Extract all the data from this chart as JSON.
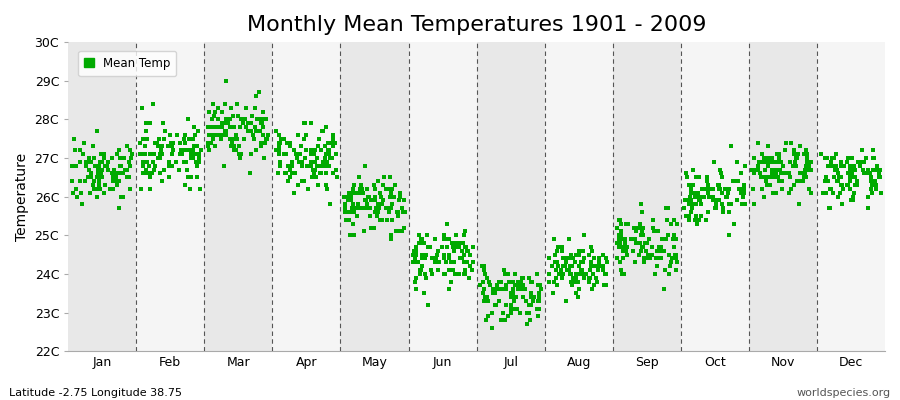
{
  "title": "Monthly Mean Temperatures 1901 - 2009",
  "ylabel": "Temperature",
  "subtitle_left": "Latitude -2.75 Longitude 38.75",
  "subtitle_right": "worldspecies.org",
  "legend_label": "Mean Temp",
  "background_color": "#ffffff",
  "band_color_odd": "#e8e8e8",
  "band_color_even": "#f5f5f5",
  "dot_color": "#00aa00",
  "ylim": [
    22,
    30
  ],
  "yticks": [
    22,
    23,
    24,
    25,
    26,
    27,
    28,
    29,
    30
  ],
  "ytick_labels": [
    "22C",
    "23C",
    "24C",
    "25C",
    "26C",
    "27C",
    "28C",
    "29C",
    "30C"
  ],
  "months": [
    "Jan",
    "Feb",
    "Mar",
    "Apr",
    "May",
    "Jun",
    "Jul",
    "Aug",
    "Sep",
    "Oct",
    "Nov",
    "Dec"
  ],
  "monthly_means": [
    26.65,
    27.15,
    27.75,
    27.05,
    25.75,
    24.45,
    23.5,
    24.15,
    24.75,
    26.05,
    26.65,
    26.5
  ],
  "monthly_stds": [
    0.38,
    0.42,
    0.42,
    0.4,
    0.4,
    0.38,
    0.35,
    0.35,
    0.38,
    0.35,
    0.32,
    0.32
  ],
  "n_years": 109,
  "title_fontsize": 16,
  "axis_label_fontsize": 10,
  "tick_fontsize": 9
}
